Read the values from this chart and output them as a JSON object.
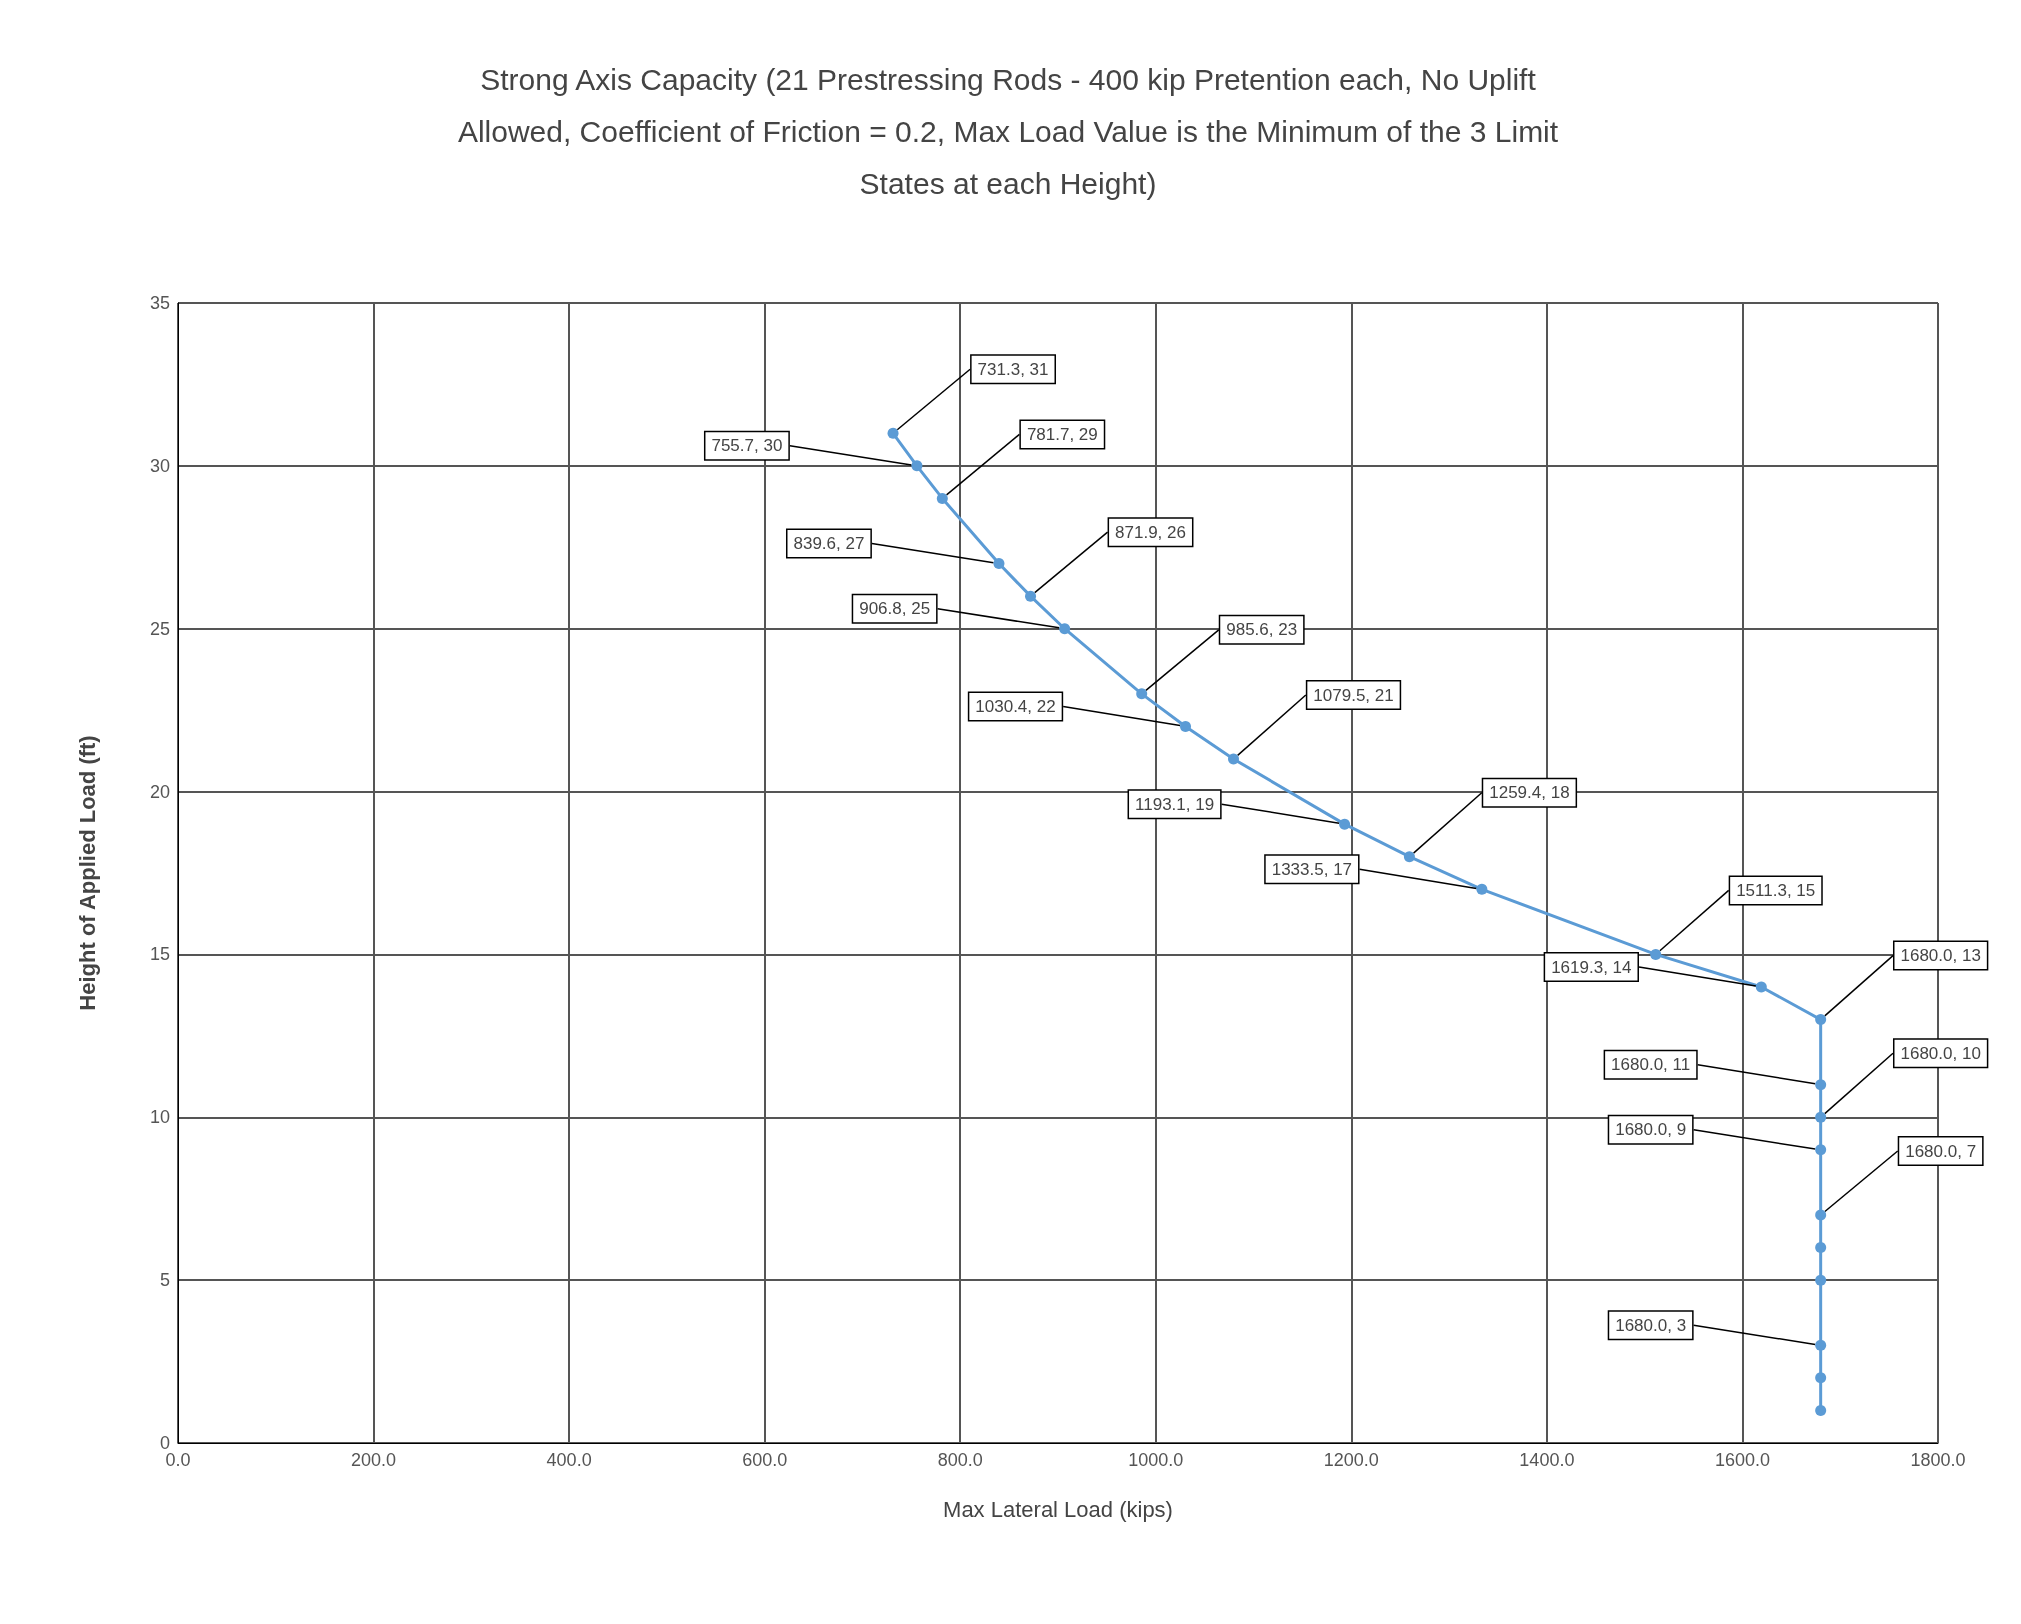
{
  "chart_data": {
    "type": "line",
    "title": "Strong Axis Capacity (21 Prestressing Rods - 400 kip Pretention each, No Uplift\nAllowed, Coefficient of Friction = 0.2, Max Load Value is the Minimum of the 3 Limit\nStates at each Height)",
    "xlabel": "Max Lateral Load (kips)",
    "ylabel": "Height of Applied Load (ft)",
    "x": [
      731.3,
      755.7,
      781.7,
      839.6,
      871.9,
      906.8,
      985.6,
      1030.4,
      1079.5,
      1193.1,
      1259.4,
      1333.5,
      1511.3,
      1619.3,
      1680.0,
      1680.0,
      1680.0,
      1680.0,
      1680.0,
      1680.0,
      1680.0,
      1680.0,
      1680.0,
      1680.0
    ],
    "values": [
      31,
      30,
      29,
      27,
      26,
      25,
      23,
      22,
      21,
      19,
      18,
      17,
      15,
      14,
      13,
      11,
      10,
      9,
      7,
      6,
      5,
      3,
      2,
      1
    ],
    "value_labels": [
      "731.3, 31",
      "755.7, 30",
      "781.7, 29",
      "839.6, 27",
      "871.9, 26",
      "906.8, 25",
      "985.6, 23",
      "1030.4, 22",
      "1079.5, 21",
      "1193.1, 19",
      "1259.4, 18",
      "1333.5, 17",
      "1511.3, 15",
      "1619.3, 14",
      "1680.0, 13",
      "1680.0, 11",
      "1680.0, 10",
      "1680.0, 9",
      "1680.0, 7",
      null,
      null,
      "1680.0, 3",
      null,
      null
    ],
    "color": "#5b9bd5",
    "marker": "circle",
    "grid": true,
    "xlim": [
      0,
      1800
    ],
    "xticks": [
      {
        "value": 0,
        "label": "0.0"
      },
      {
        "value": 200,
        "label": "200.0"
      },
      {
        "value": 400,
        "label": "400.0"
      },
      {
        "value": 600,
        "label": "600.0"
      },
      {
        "value": 800,
        "label": "800.0"
      },
      {
        "value": 1000,
        "label": "1000.0"
      },
      {
        "value": 1200,
        "label": "1200.0"
      },
      {
        "value": 1400,
        "label": "1400.0"
      },
      {
        "value": 1600,
        "label": "1600.0"
      },
      {
        "value": 1800,
        "label": "1800.0"
      }
    ],
    "ylim": [
      0,
      35
    ],
    "yticks": [
      0,
      5,
      10,
      15,
      20,
      25,
      30,
      35
    ]
  }
}
